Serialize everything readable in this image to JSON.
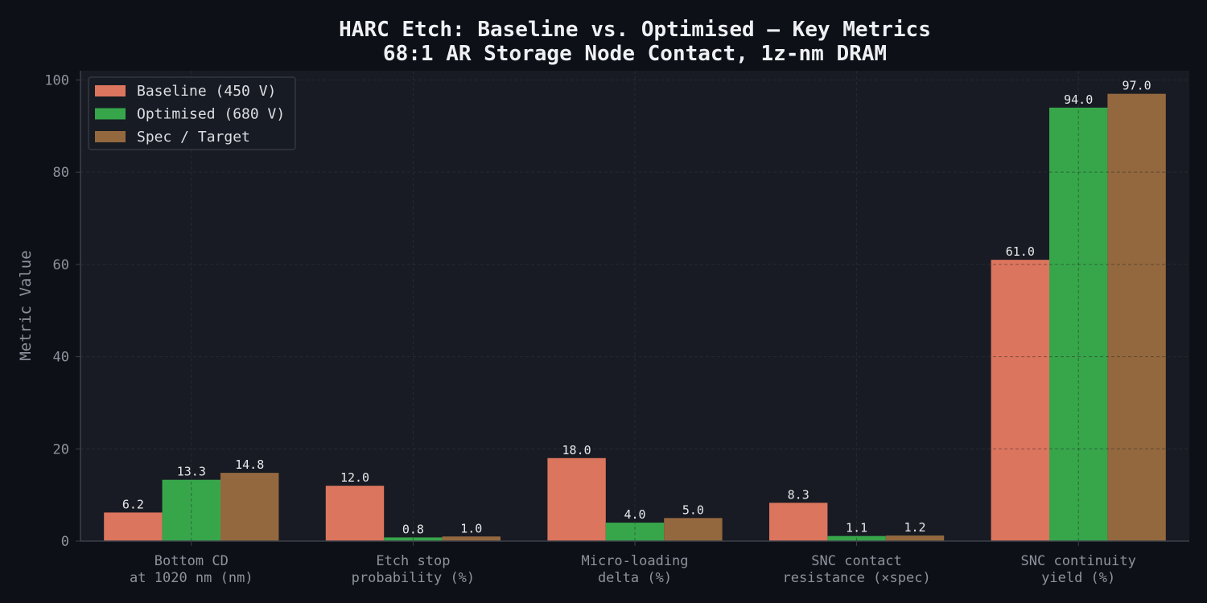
{
  "chart_data": {
    "type": "bar",
    "title": "HARC Etch: Baseline vs. Optimised — Key Metrics",
    "subtitle": "68:1 AR Storage Node Contact, 1z-nm DRAM",
    "xlabel": "",
    "ylabel": "Metric Value",
    "ylim": [
      0,
      102
    ],
    "yticks": [
      0,
      20,
      40,
      60,
      80,
      100
    ],
    "grid": true,
    "legend_position": "top-left",
    "categories": [
      [
        "Bottom CD",
        "at 1020 nm (nm)"
      ],
      [
        "Etch stop",
        "probability (%)"
      ],
      [
        "Micro-loading",
        "delta (%)"
      ],
      [
        "SNC contact",
        "resistance (×spec)"
      ],
      [
        "SNC continuity",
        "yield (%)"
      ]
    ],
    "series": [
      {
        "name": "Baseline (450 V)",
        "color": "#dc755e",
        "values": [
          6.2,
          12.0,
          18.0,
          8.3,
          61.0
        ],
        "labels": [
          "6.2",
          "12.0",
          "18.0",
          "8.3",
          "61.0"
        ]
      },
      {
        "name": "Optimised (680 V)",
        "color": "#37a64b",
        "values": [
          13.3,
          0.8,
          4.0,
          1.1,
          94.0
        ],
        "labels": [
          "13.3",
          "0.8",
          "4.0",
          "1.1",
          "94.0"
        ]
      },
      {
        "name": "Spec / Target",
        "color": "#94683f",
        "values": [
          14.8,
          1.0,
          5.0,
          1.2,
          97.0
        ],
        "labels": [
          "14.8",
          "1.0",
          "5.0",
          "1.2",
          "97.0"
        ]
      }
    ],
    "colors": {
      "page_background": "#0d1017",
      "plot_background": "#181b23",
      "grid": "#2c313b",
      "axis": "#3b404a",
      "title_text": "#eef0f4",
      "tick_text": "#8d929c",
      "value_text": "#e8e9ec",
      "legend_text": "#dcdee3",
      "legend_border": "#3a3e47"
    }
  }
}
